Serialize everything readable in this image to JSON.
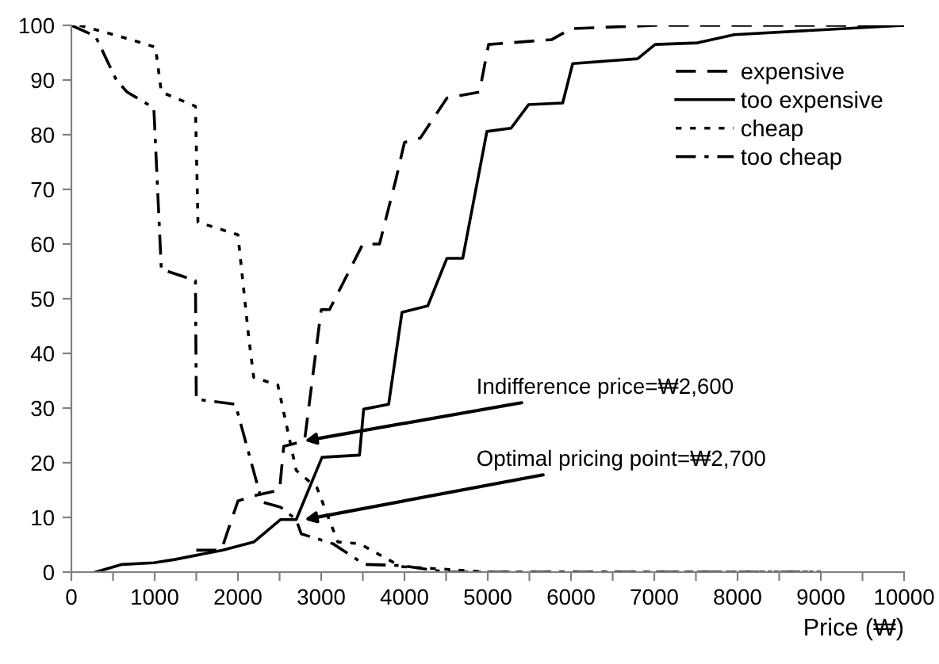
{
  "chart_data": {
    "type": "line",
    "xlabel": "Price (₩)",
    "xlim": [
      0,
      10000
    ],
    "ylim": [
      0,
      100
    ],
    "xticks": [
      0,
      {
        "value": 500,
        "label": null
      },
      1000,
      {
        "value": 1500,
        "label": null
      },
      2000,
      {
        "value": 2500,
        "label": null
      },
      3000,
      {
        "value": 3500,
        "label": null
      },
      4000,
      {
        "value": 4500,
        "label": null
      },
      5000,
      {
        "value": 5500,
        "label": null
      },
      6000,
      {
        "value": 6500,
        "label": null
      },
      7000,
      {
        "value": 7500,
        "label": null
      },
      8000,
      {
        "value": 8500,
        "label": null
      },
      9000,
      {
        "value": 9500,
        "label": null
      },
      10000
    ],
    "yticks": [
      0,
      10,
      20,
      30,
      40,
      50,
      60,
      70,
      80,
      90,
      100
    ],
    "grid": false,
    "legend": "top right",
    "marker": "none",
    "series": [
      {
        "name": "expensive",
        "color": "#000000",
        "line_style": "dashed",
        "x": [
          1500,
          1800,
          2000,
          2200,
          2500,
          2550,
          2800,
          3000,
          3100,
          3500,
          3700,
          3900,
          4000,
          4190,
          4510,
          4900,
          5010,
          5770,
          6000,
          7000,
          10000
        ],
        "values": [
          4,
          4,
          13,
          14,
          15,
          23,
          24,
          48,
          48,
          60,
          60,
          72,
          78.6,
          79.4,
          86.7,
          87.8,
          96.5,
          97.4,
          99.4,
          100,
          100
        ]
      },
      {
        "name": "too expensive",
        "color": "#000000",
        "line_style": "solid",
        "x": [
          290,
          610,
          990,
          1240,
          1810,
          2190,
          2510,
          2700,
          3010,
          3460,
          3510,
          3810,
          3970,
          4280,
          4510,
          4700,
          4990,
          5280,
          5490,
          5900,
          6020,
          6800,
          7010,
          7520,
          7960,
          10000
        ],
        "values": [
          0,
          1.4,
          1.7,
          2.3,
          4,
          5.5,
          9.6,
          9.6,
          21,
          21.4,
          29.8,
          30.7,
          47.5,
          48.7,
          57.4,
          57.4,
          80.6,
          81.2,
          85.5,
          85.8,
          93,
          93.9,
          96.5,
          96.8,
          98.3,
          100
        ]
      },
      {
        "name": "cheap",
        "color": "#000000",
        "line_style": "dotted",
        "x": [
          100,
          510,
          800,
          1010,
          1080,
          1490,
          1520,
          2000,
          2130,
          2190,
          2480,
          2700,
          2950,
          3200,
          3460,
          3960,
          4500,
          5000,
          9000
        ],
        "values": [
          100,
          98.3,
          97,
          96,
          87.8,
          85.2,
          64,
          61.7,
          42.9,
          35.6,
          34.2,
          18.6,
          15.4,
          5.5,
          5.2,
          1,
          0.5,
          0,
          0
        ]
      },
      {
        "name": "too cheap",
        "color": "#000000",
        "line_style": "dashdot",
        "x": [
          0,
          290,
          540,
          670,
          990,
          1080,
          1490,
          1500,
          1970,
          2290,
          2510,
          2700,
          2760,
          3140,
          3520,
          3960,
          4500,
          9000
        ],
        "values": [
          100,
          98,
          90,
          87.8,
          84.9,
          55.4,
          53.3,
          31.6,
          30.7,
          12.8,
          11.9,
          9.6,
          7,
          5.2,
          1.4,
          1.2,
          0,
          0
        ]
      }
    ],
    "annotations": [
      {
        "text": "Indifference price=₩2,600",
        "x": 2800,
        "y": 24
      },
      {
        "text": "Optimal pricing point=₩2,700",
        "x": 2800,
        "y": 9.6
      }
    ]
  }
}
